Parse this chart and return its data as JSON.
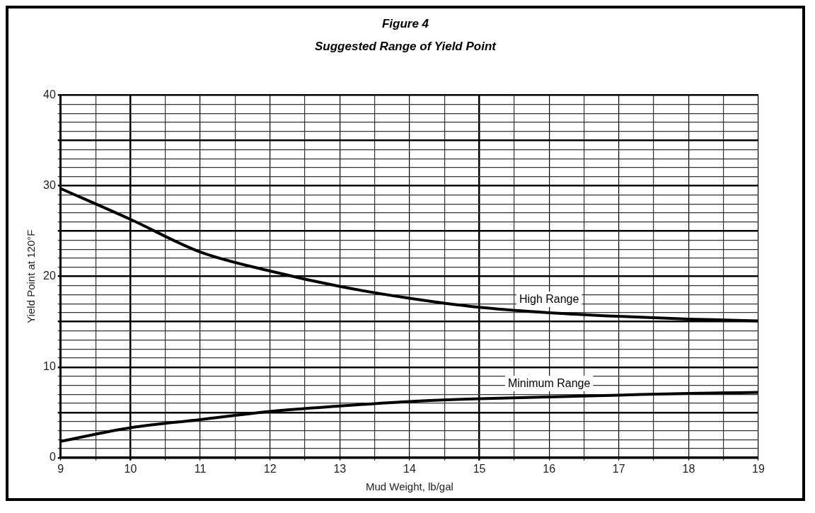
{
  "chart_data": {
    "type": "line",
    "title": "Figure 4",
    "subtitle": "Suggested Range of Yield Point",
    "xlabel": "Mud Weight, lb/gal",
    "ylabel": "Yield Point at 120°F",
    "x": [
      9,
      10,
      11,
      12,
      13,
      14,
      15,
      16,
      17,
      18,
      19
    ],
    "series": [
      {
        "name": "High Range",
        "color": "#000000",
        "values": [
          29.7,
          26.3,
          22.7,
          20.6,
          18.9,
          17.6,
          16.6,
          16.0,
          15.6,
          15.3,
          15.1
        ]
      },
      {
        "name": "Minimum Range",
        "color": "#000000",
        "values": [
          1.8,
          3.3,
          4.2,
          5.1,
          5.7,
          6.2,
          6.5,
          6.7,
          6.9,
          7.1,
          7.2
        ]
      }
    ],
    "xlim": [
      9,
      19
    ],
    "xticks": [
      9,
      {
        "value": 9.5,
        "label": null
      },
      10,
      {
        "value": 10.5,
        "label": null
      },
      11,
      {
        "value": 11.5,
        "label": null
      },
      12,
      {
        "value": 12.5,
        "label": null
      },
      13,
      {
        "value": 13.5,
        "label": null
      },
      14,
      {
        "value": 14.5,
        "label": null
      },
      15,
      {
        "value": 15.5,
        "label": null
      },
      16,
      {
        "value": 16.5,
        "label": null
      },
      17,
      {
        "value": 17.5,
        "label": null
      },
      18,
      {
        "value": 18.5,
        "label": null
      },
      19
    ],
    "ylim": [
      0,
      40
    ],
    "yticks": [
      0,
      {
        "value": 1,
        "label": null
      },
      {
        "value": 2,
        "label": null
      },
      {
        "value": 3,
        "label": null
      },
      {
        "value": 4,
        "label": null
      },
      {
        "value": 5,
        "label": null
      },
      {
        "value": 6,
        "label": null
      },
      {
        "value": 7,
        "label": null
      },
      {
        "value": 8,
        "label": null
      },
      {
        "value": 9,
        "label": null
      },
      10,
      {
        "value": 11,
        "label": null
      },
      {
        "value": 12,
        "label": null
      },
      {
        "value": 13,
        "label": null
      },
      {
        "value": 14,
        "label": null
      },
      {
        "value": 15,
        "label": null
      },
      {
        "value": 16,
        "label": null
      },
      {
        "value": 17,
        "label": null
      },
      {
        "value": 18,
        "label": null
      },
      {
        "value": 19,
        "label": null
      },
      20,
      {
        "value": 21,
        "label": null
      },
      {
        "value": 22,
        "label": null
      },
      {
        "value": 23,
        "label": null
      },
      {
        "value": 24,
        "label": null
      },
      {
        "value": 25,
        "label": null
      },
      {
        "value": 26,
        "label": null
      },
      {
        "value": 27,
        "label": null
      },
      {
        "value": 28,
        "label": null
      },
      {
        "value": 29,
        "label": null
      },
      30,
      {
        "value": 31,
        "label": null
      },
      {
        "value": 32,
        "label": null
      },
      {
        "value": 33,
        "label": null
      },
      {
        "value": 34,
        "label": null
      },
      {
        "value": 35,
        "label": null
      },
      {
        "value": 36,
        "label": null
      },
      {
        "value": 37,
        "label": null
      },
      {
        "value": 38,
        "label": null
      },
      {
        "value": 39,
        "label": null
      },
      40
    ],
    "grid": true,
    "legend": false,
    "marker": "none",
    "line_style": "solid"
  }
}
